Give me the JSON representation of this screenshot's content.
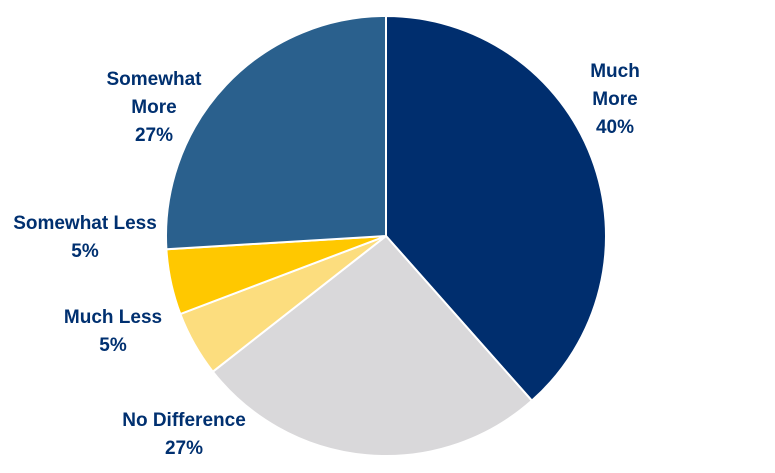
{
  "chart_data": {
    "type": "pie",
    "slices": [
      {
        "label_lines": [
          "Much",
          "More"
        ],
        "percent_label": "40%",
        "value": 40,
        "color": "#002E6E"
      },
      {
        "label_lines": [
          "No Difference"
        ],
        "percent_label": "27%",
        "value": 27,
        "color": "#D9D8DA"
      },
      {
        "label_lines": [
          "Much Less"
        ],
        "percent_label": "5%",
        "value": 5,
        "color": "#FCDD7E"
      },
      {
        "label_lines": [
          "Somewhat Less"
        ],
        "percent_label": "5%",
        "value": 5,
        "color": "#FFC800"
      },
      {
        "label_lines": [
          "Somewhat",
          "More"
        ],
        "percent_label": "27%",
        "value": 27,
        "color": "#2A608D"
      }
    ],
    "label_color": "#003070",
    "start": "top, clockwise"
  }
}
